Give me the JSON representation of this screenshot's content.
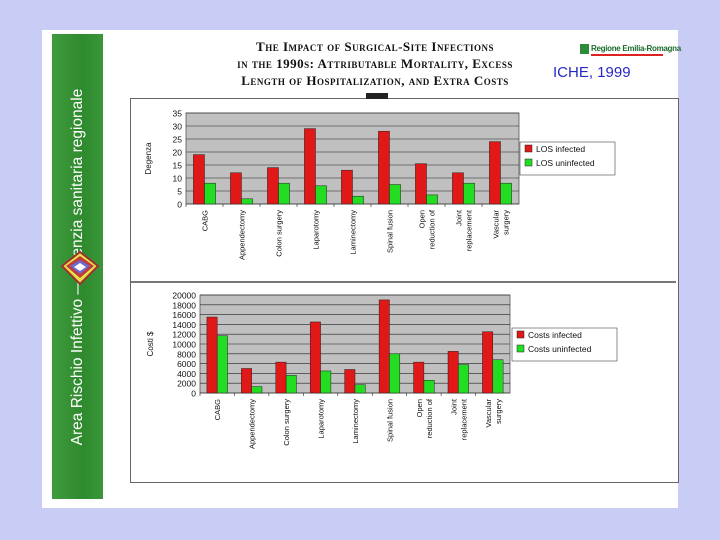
{
  "sidebar": {
    "text": "Area Rischio Infettivo — Agenzia sanitaria regionale"
  },
  "title": {
    "line1": "The Impact of Surgical-Site Infections",
    "line2": "in the 1990s: Attributable Mortality, Excess",
    "line3": "Length of Hospitalization, and Extra Costs"
  },
  "brand": {
    "name": "Regione Emilia-Romagna"
  },
  "source": "ICHE, 1999",
  "colors": {
    "infected": "#e01818",
    "uninfected": "#22dd22",
    "plot_bg": "#c0c0c0",
    "sidebar": "#349434",
    "slide_bg": "#c9cdf6"
  },
  "chart_data": [
    {
      "type": "bar",
      "ylabel": "Degenza",
      "xlabel": "",
      "ylim": [
        0,
        35
      ],
      "yticks": [
        "0",
        "5",
        "10",
        "15",
        "20",
        "25",
        "30",
        "35"
      ],
      "categories": [
        "CABG",
        "Appendectomy",
        "Colon surgery",
        "Laparotomy",
        "Laminectomy",
        "Spinal fusion",
        "Open reduction of",
        "Joint replacement",
        "Vascular surgery"
      ],
      "category_lines": [
        [
          "CABG"
        ],
        [
          "Appendectomy"
        ],
        [
          "Colon surgery"
        ],
        [
          "Laparotomy"
        ],
        [
          "Laminectomy"
        ],
        [
          "Spinal fusion"
        ],
        [
          "Open",
          "reduction of"
        ],
        [
          "Joint",
          "replacement"
        ],
        [
          "Vascular",
          "surgery"
        ]
      ],
      "series": [
        {
          "name": "LOS infected",
          "values": [
            19,
            12,
            14,
            29,
            13,
            28,
            15.5,
            12,
            24
          ]
        },
        {
          "name": "LOS uninfected",
          "values": [
            8,
            2,
            8,
            7,
            3,
            7.5,
            3.5,
            8,
            8
          ]
        }
      ],
      "legend_position": "right"
    },
    {
      "type": "bar",
      "ylabel": "Costi $",
      "xlabel": "",
      "ylim": [
        0,
        20000
      ],
      "yticks": [
        "0",
        "2000",
        "4000",
        "6000",
        "8000",
        "10000",
        "12000",
        "14000",
        "16000",
        "18000",
        "20000"
      ],
      "categories": [
        "CABG",
        "Appendectomy",
        "Colon surgery",
        "Laparotomy",
        "Laminectomy",
        "Spinal fusion",
        "Open reduction of",
        "Joint replacement",
        "Vascular surgery"
      ],
      "category_lines": [
        [
          "CABG"
        ],
        [
          "Appendectomy"
        ],
        [
          "Colon surgery"
        ],
        [
          "Laparotomy"
        ],
        [
          "Laminectomy"
        ],
        [
          "Spinal fusion"
        ],
        [
          "Open",
          "reduction of"
        ],
        [
          "Joint",
          "replacement"
        ],
        [
          "Vascular",
          "surgery"
        ]
      ],
      "series": [
        {
          "name": "Costs infected",
          "values": [
            15500,
            5000,
            6300,
            14500,
            4800,
            19000,
            6300,
            8500,
            12500
          ]
        },
        {
          "name": "Costs uninfected",
          "values": [
            11700,
            1300,
            3600,
            4500,
            1700,
            8000,
            2600,
            5800,
            6800
          ]
        }
      ],
      "legend_position": "right"
    }
  ]
}
